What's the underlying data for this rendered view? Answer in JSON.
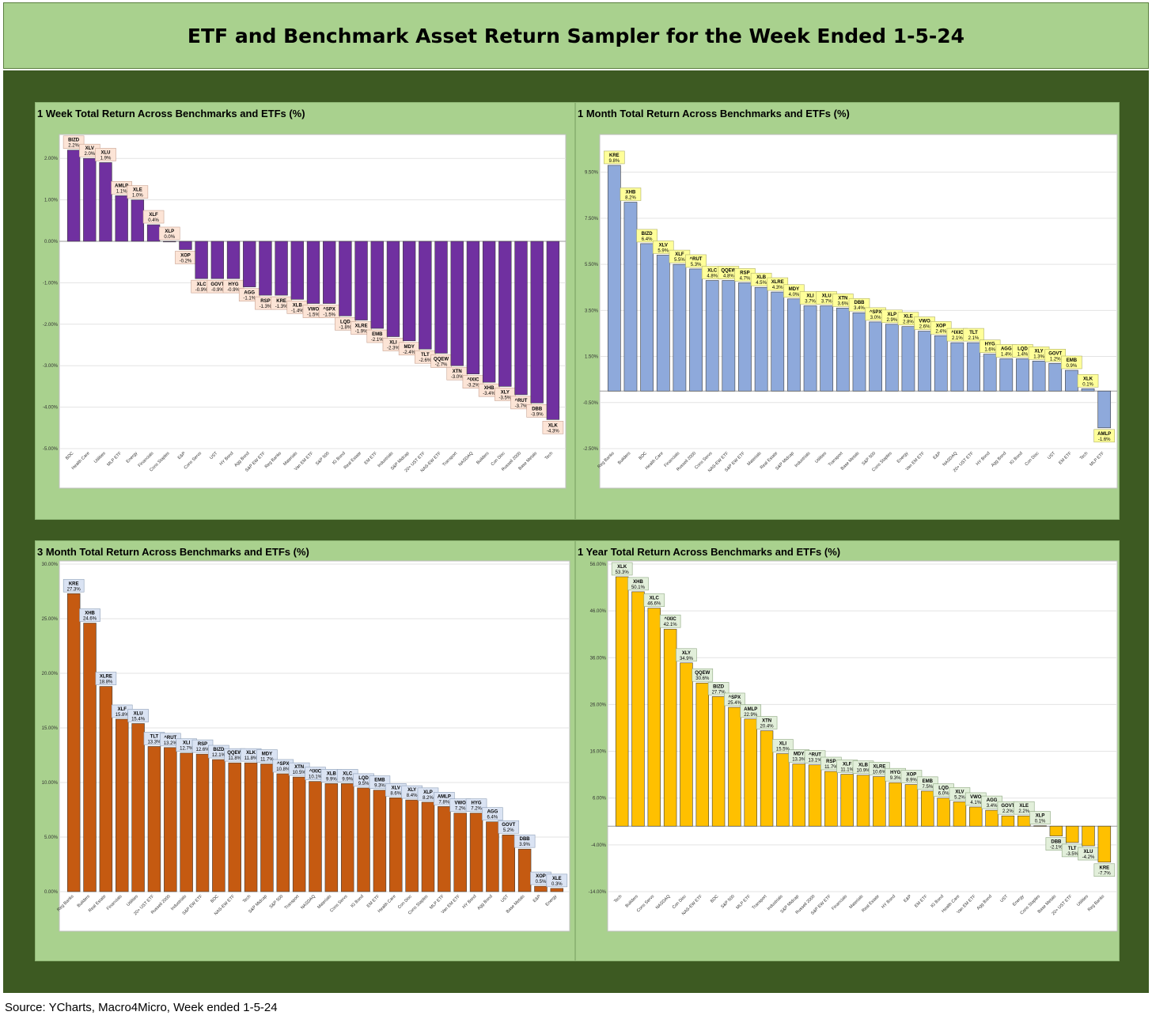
{
  "header": {
    "title": "ETF and Benchmark Asset Return Sampler for the Week Ended 1-5-24"
  },
  "source": "Source: YCharts, Macro4Micro, Week ended 1-5-24",
  "chart_data": [
    {
      "type": "bar",
      "title": "1 Week Total Return Across Benchmarks and ETFs (%)",
      "color": "#7030a0",
      "label_style": {
        "fill": "#fce4d6",
        "stroke": "#c9a392"
      },
      "ylim": [
        -5,
        2.5
      ],
      "yticks": [
        2,
        1,
        0,
        -1,
        -2,
        -3,
        -4,
        -5
      ],
      "tick_format": "{v}.00%",
      "categories": [
        "BDC",
        "Health Care",
        "Utilities",
        "MLP ETF",
        "Energy",
        "Financials",
        "Cons Staples",
        "E&P",
        "Cons Servs",
        "UST",
        "HY Bond",
        "Agg Bond",
        "S&P EW ETF",
        "Reg Banks",
        "Materials",
        "Van EM ETF",
        "S&P 500",
        "IG Bond",
        "Real Estate",
        "EM ETF",
        "Industrials",
        "S&P Midcap",
        "20+ UST ETF",
        "NAS-EW ETF",
        "Transport",
        "NASDAQ",
        "Builders",
        "Con Disc",
        "Russell 2000",
        "Base Metals",
        "Tech"
      ],
      "tickers": [
        "BIZD",
        "XLV",
        "XLU",
        "AMLP",
        "XLE",
        "XLF",
        "XLP",
        "XOP",
        "XLC",
        "GOVT",
        "HYG",
        "AGG",
        "RSP",
        "KRE",
        "XLB",
        "VWO",
        "^SPX",
        "LQD",
        "XLRE",
        "EMB",
        "XLI",
        "MDY",
        "TLT",
        "QQEW",
        "XTN",
        "^IXIC",
        "XHB",
        "XLY",
        "^RUT",
        "DBB",
        "XLK"
      ],
      "values": [
        2.2,
        2.0,
        1.9,
        1.1,
        1.0,
        0.4,
        0.0,
        -0.2,
        -0.9,
        -0.9,
        -0.9,
        -1.1,
        -1.3,
        -1.3,
        -1.4,
        -1.5,
        -1.5,
        -1.8,
        -1.9,
        -2.1,
        -2.3,
        -2.4,
        -2.6,
        -2.7,
        -3.0,
        -3.2,
        -3.4,
        -3.5,
        -3.7,
        -3.9,
        -4.3
      ]
    },
    {
      "type": "bar",
      "title": "1 Month Total Return Across Benchmarks and ETFs (%)",
      "color": "#8ea9db",
      "label_style": {
        "fill": "#ffff99",
        "stroke": "#b0b06a"
      },
      "ylim": [
        -2.5,
        11
      ],
      "yticks": [
        9.5,
        7.5,
        5.5,
        3.5,
        1.5,
        -0.5,
        -2.5
      ],
      "tick_format": "{v}0%",
      "categories": [
        "Reg Banks",
        "Builders",
        "BDC",
        "Health Care",
        "Financials",
        "Russell 2000",
        "Cons Servs",
        "NAS-EW ETF",
        "S&P EW ETF",
        "Materials",
        "Real Estate",
        "S&P Midcap",
        "Industrials",
        "Utilities",
        "Transport",
        "Base Metals",
        "S&P 500",
        "Cons Staples",
        "Energy",
        "Van EM ETF",
        "E&P",
        "NASDAQ",
        "20+ UST ETF",
        "HY Bond",
        "Agg Bond",
        "IG Bond",
        "Con Disc",
        "UST",
        "EM ETF",
        "Tech",
        "MLP ETF"
      ],
      "tickers": [
        "KRE",
        "XHB",
        "BIZD",
        "XLV",
        "XLF",
        "^RUT",
        "XLC",
        "QQEW",
        "RSP",
        "XLB",
        "XLRE",
        "MDY",
        "XLI",
        "XLU",
        "XTN",
        "DBB",
        "^SPX",
        "XLP",
        "XLE",
        "VWO",
        "XOP",
        "^IXIC",
        "TLT",
        "HYG",
        "AGG",
        "LQD",
        "XLY",
        "GOVT",
        "EMB",
        "XLK",
        "AMLP"
      ],
      "values": [
        9.8,
        8.2,
        6.4,
        5.9,
        5.5,
        5.3,
        4.8,
        4.8,
        4.7,
        4.5,
        4.3,
        4.0,
        3.7,
        3.7,
        3.6,
        3.4,
        3.0,
        2.9,
        2.8,
        2.6,
        2.4,
        2.1,
        2.1,
        1.6,
        1.4,
        1.4,
        1.3,
        1.2,
        0.9,
        0.1,
        -1.6
      ]
    },
    {
      "type": "bar",
      "title": "3 Month Total Return Across Benchmarks and ETFs (%)",
      "color": "#c55a11",
      "label_style": {
        "fill": "#dae3f3",
        "stroke": "#8fa0b8"
      },
      "ylim": [
        0,
        30
      ],
      "yticks": [
        30,
        25,
        20,
        15,
        10,
        5,
        0
      ],
      "tick_format": "{v}.00%",
      "categories": [
        "Reg Banks",
        "Builders",
        "Real Estate",
        "Financials",
        "Utilities",
        "20+ UST ETF",
        "Russell 2000",
        "Industrials",
        "S&P EW ETF",
        "BDC",
        "NAS-EW ETF",
        "Tech",
        "S&P Midcap",
        "S&P 500",
        "Transport",
        "NASDAQ",
        "Materials",
        "Cons Servs",
        "IG Bond",
        "EM ETF",
        "Health Care",
        "Con Disc",
        "Cons Staples",
        "MLP ETF",
        "Van EM ETF",
        "HY Bond",
        "Agg Bond",
        "UST",
        "Base Metals",
        "E&P",
        "Energy"
      ],
      "tickers": [
        "KRE",
        "XHB",
        "XLRE",
        "XLF",
        "XLU",
        "TLT",
        "^RUT",
        "XLI",
        "RSP",
        "BIZD",
        "QQEW",
        "XLK",
        "MDY",
        "^SPX",
        "XTN",
        "^IXIC",
        "XLB",
        "XLC",
        "LQD",
        "EMB",
        "XLV",
        "XLY",
        "XLP",
        "AMLP",
        "VWO",
        "HYG",
        "AGG",
        "GOVT",
        "DBB",
        "XOP",
        "XLE"
      ],
      "values": [
        27.3,
        24.6,
        18.8,
        15.8,
        15.4,
        13.3,
        13.2,
        12.7,
        12.6,
        12.1,
        11.8,
        11.8,
        11.7,
        10.8,
        10.5,
        10.1,
        9.9,
        9.9,
        9.5,
        9.3,
        8.6,
        8.4,
        8.2,
        7.8,
        7.2,
        7.2,
        6.4,
        5.2,
        3.9,
        0.5,
        0.3
      ]
    },
    {
      "type": "bar",
      "title": "1 Year Total Return Across Benchmarks and ETFs (%)",
      "color": "#ffc000",
      "label_style": {
        "fill": "#e2efda",
        "stroke": "#8fa882"
      },
      "ylim": [
        -14,
        56
      ],
      "yticks": [
        56,
        46,
        36,
        26,
        16,
        6,
        -4,
        -14
      ],
      "tick_format": "{v}.00%",
      "categories": [
        "Tech",
        "Builders",
        "Cons Servs",
        "NASDAQ",
        "Con Disc",
        "NAS-EW ETF",
        "BDC",
        "S&P 500",
        "MLP ETF",
        "Transport",
        "Industrials",
        "S&P Midcap",
        "Russell 2000",
        "S&P EW ETF",
        "Financials",
        "Materials",
        "Real Estate",
        "HY Bond",
        "E&P",
        "EM ETF",
        "IG Bond",
        "Health Care",
        "Van EM ETF",
        "Agg Bond",
        "UST",
        "Energy",
        "Cons Staples",
        "Base Metals",
        "20+ UST ETF",
        "Utilities",
        "Reg Banks"
      ],
      "tickers": [
        "XLK",
        "XHB",
        "XLC",
        "^IXIC",
        "XLY",
        "QQEW",
        "BIZD",
        "^SPX",
        "AMLP",
        "XTN",
        "XLI",
        "MDY",
        "^RUT",
        "RSP",
        "XLF",
        "XLB",
        "XLRE",
        "HYG",
        "XOP",
        "EMB",
        "LQD",
        "XLV",
        "VWO",
        "AGG",
        "GOVT",
        "XLE",
        "XLP",
        "DBB",
        "TLT",
        "XLU",
        "KRE"
      ],
      "values": [
        53.3,
        50.1,
        46.6,
        42.1,
        34.9,
        30.6,
        27.7,
        25.4,
        22.9,
        20.4,
        15.5,
        13.3,
        13.1,
        11.7,
        11.1,
        10.9,
        10.6,
        9.3,
        8.9,
        7.5,
        6.0,
        5.2,
        4.1,
        3.4,
        2.2,
        2.2,
        0.1,
        -2.1,
        -3.5,
        -4.2,
        -7.7
      ]
    }
  ]
}
